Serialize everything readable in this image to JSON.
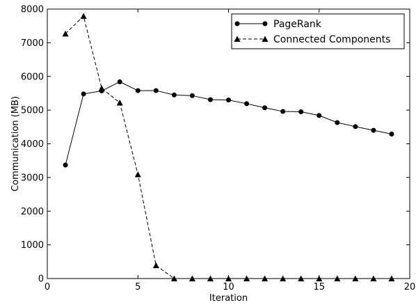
{
  "chart_data": {
    "type": "line",
    "title": "",
    "xlabel": "Iteration",
    "ylabel": "Communication (MB)",
    "xlim": [
      0,
      20
    ],
    "ylim": [
      0,
      8000
    ],
    "xticks": [
      0,
      5,
      10,
      15,
      20
    ],
    "yticks": [
      0,
      1000,
      2000,
      3000,
      4000,
      5000,
      6000,
      7000,
      8000
    ],
    "grid": false,
    "legend_position": "top-right",
    "series": [
      {
        "name": "PageRank",
        "marker": "circle",
        "line_style": "solid",
        "color": "#000000",
        "x": [
          1,
          2,
          3,
          4,
          5,
          6,
          7,
          8,
          9,
          10,
          11,
          12,
          13,
          14,
          15,
          16,
          17,
          18,
          19
        ],
        "y": [
          3370,
          5480,
          5570,
          5840,
          5580,
          5580,
          5450,
          5430,
          5310,
          5300,
          5190,
          5070,
          4960,
          4950,
          4840,
          4630,
          4510,
          4400,
          4290
        ]
      },
      {
        "name": "Connected Components",
        "marker": "triangle",
        "line_style": "dashed",
        "color": "#000000",
        "x": [
          1,
          2,
          3,
          4,
          5,
          6,
          7,
          8,
          9,
          10,
          11,
          12,
          13,
          14,
          15,
          16,
          17,
          18,
          19
        ],
        "y": [
          7270,
          7790,
          5650,
          5220,
          3090,
          390,
          0,
          0,
          0,
          0,
          0,
          0,
          0,
          0,
          0,
          0,
          0,
          0,
          0
        ]
      }
    ]
  }
}
